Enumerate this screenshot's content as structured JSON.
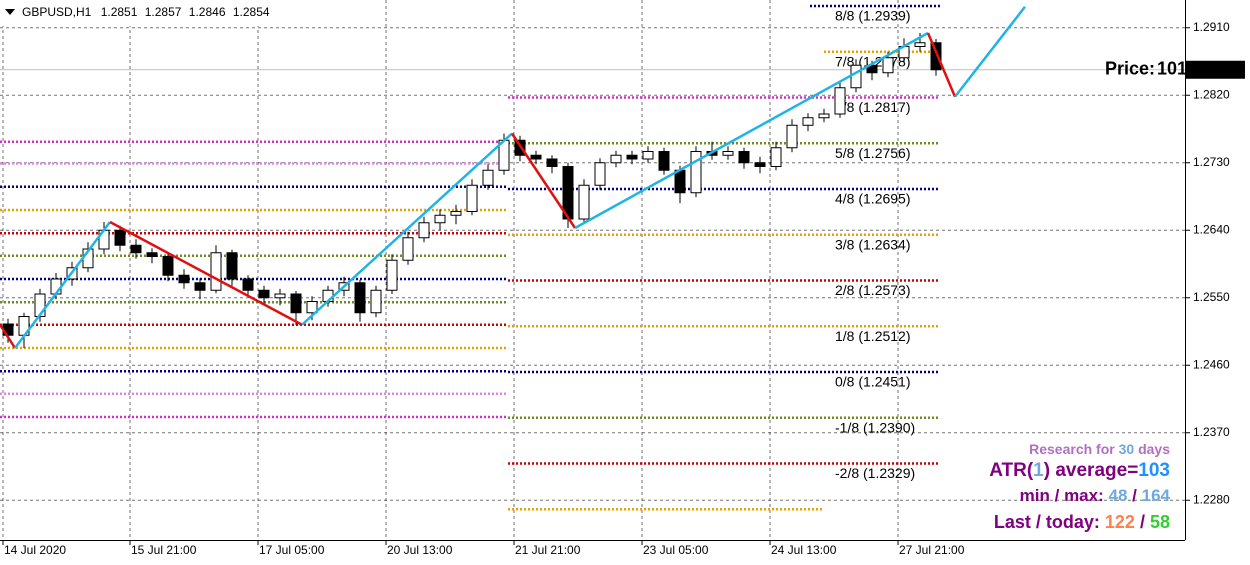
{
  "chart_data": {
    "type": "candlestick",
    "symbol": "GBPUSD,H1",
    "ohlc": [
      1.2851,
      1.2857,
      1.2846,
      1.2854
    ],
    "price_label": "Price:",
    "price_value": 101,
    "xlim": [
      0,
      296.25
    ],
    "ylim": [
      1.2227,
      1.2947
    ],
    "xticks": [
      {
        "value": 0.75,
        "label": "14 Jul 2020"
      },
      {
        "value": 32.5,
        "label": "15 Jul 21:00"
      },
      {
        "value": 64.5,
        "label": "17 Jul 05:00"
      },
      {
        "value": 96.5,
        "label": "20 Jul 13:00"
      },
      {
        "value": 128.5,
        "label": "21 Jul 21:00"
      },
      {
        "value": 160.5,
        "label": "23 Jul 05:00"
      },
      {
        "value": 192.5,
        "label": "24 Jul 13:00"
      },
      {
        "value": 224.5,
        "label": "27 Jul 21:00"
      }
    ],
    "yticks": [
      {
        "value": 1.291,
        "label": "1.2910"
      },
      {
        "value": 1.282,
        "label": "1.2820"
      },
      {
        "value": 1.273,
        "label": "1.2730"
      },
      {
        "value": 1.264,
        "label": "1.2640"
      },
      {
        "value": 1.255,
        "label": "1.2550"
      },
      {
        "value": 1.246,
        "label": "1.2460"
      },
      {
        "value": 1.237,
        "label": "1.2370"
      },
      {
        "value": 1.228,
        "label": "1.2280"
      }
    ],
    "grid": true,
    "x": [
      2,
      6,
      10,
      14,
      18,
      22,
      26,
      30,
      34,
      38,
      42,
      46,
      50,
      54,
      58,
      62,
      66,
      70,
      74,
      78,
      82,
      86,
      90,
      94,
      98,
      102,
      106,
      110,
      114,
      118,
      122,
      126,
      130,
      134,
      138,
      142,
      146,
      150,
      154,
      158,
      162,
      166,
      170,
      174,
      178,
      182,
      186,
      190,
      194,
      198,
      202,
      206,
      210,
      214,
      218,
      222,
      226,
      230,
      234
    ],
    "candles": [
      [
        1.2515,
        1.2522,
        1.249,
        1.25
      ],
      [
        1.25,
        1.253,
        1.2483,
        1.2525
      ],
      [
        1.2525,
        1.2562,
        1.2518,
        1.2555
      ],
      [
        1.2555,
        1.2583,
        1.2548,
        1.2575
      ],
      [
        1.2575,
        1.2598,
        1.2566,
        1.259
      ],
      [
        1.259,
        1.2624,
        1.2584,
        1.2615
      ],
      [
        1.2615,
        1.2651,
        1.2608,
        1.264
      ],
      [
        1.264,
        1.2646,
        1.2612,
        1.262
      ],
      [
        1.262,
        1.2628,
        1.2602,
        1.261
      ],
      [
        1.261,
        1.2616,
        1.2596,
        1.2605
      ],
      [
        1.2605,
        1.2609,
        1.2572,
        1.258
      ],
      [
        1.258,
        1.2588,
        1.2562,
        1.257
      ],
      [
        1.257,
        1.2576,
        1.2548,
        1.256
      ],
      [
        1.256,
        1.262,
        1.2556,
        1.261
      ],
      [
        1.261,
        1.2614,
        1.2566,
        1.2575
      ],
      [
        1.2575,
        1.258,
        1.2552,
        1.256
      ],
      [
        1.256,
        1.2566,
        1.2542,
        1.255
      ],
      [
        1.255,
        1.2562,
        1.254,
        1.2555
      ],
      [
        1.2555,
        1.2559,
        1.2514,
        1.253
      ],
      [
        1.253,
        1.2552,
        1.252,
        1.2545
      ],
      [
        1.2545,
        1.2566,
        1.2538,
        1.256
      ],
      [
        1.256,
        1.2578,
        1.2552,
        1.257
      ],
      [
        1.257,
        1.2574,
        1.2518,
        1.253
      ],
      [
        1.253,
        1.2566,
        1.2524,
        1.256
      ],
      [
        1.256,
        1.2608,
        1.2555,
        1.26
      ],
      [
        1.26,
        1.2638,
        1.2594,
        1.263
      ],
      [
        1.263,
        1.2658,
        1.2624,
        1.265
      ],
      [
        1.265,
        1.2668,
        1.264,
        1.266
      ],
      [
        1.266,
        1.2674,
        1.2648,
        1.2665
      ],
      [
        1.2665,
        1.2708,
        1.266,
        1.27
      ],
      [
        1.27,
        1.2728,
        1.2694,
        1.272
      ],
      [
        1.272,
        1.2769,
        1.2714,
        1.276
      ],
      [
        1.276,
        1.2766,
        1.2732,
        1.274
      ],
      [
        1.274,
        1.2746,
        1.2728,
        1.2735
      ],
      [
        1.2735,
        1.274,
        1.2716,
        1.2725
      ],
      [
        1.2725,
        1.273,
        1.2643,
        1.2655
      ],
      [
        1.2655,
        1.2708,
        1.265,
        1.27
      ],
      [
        1.27,
        1.2736,
        1.2694,
        1.273
      ],
      [
        1.273,
        1.2746,
        1.2724,
        1.274
      ],
      [
        1.274,
        1.2746,
        1.2728,
        1.2735
      ],
      [
        1.2735,
        1.2752,
        1.273,
        1.2745
      ],
      [
        1.2745,
        1.275,
        1.2714,
        1.272
      ],
      [
        1.272,
        1.2726,
        1.2676,
        1.269
      ],
      [
        1.269,
        1.2752,
        1.2684,
        1.2745
      ],
      [
        1.2745,
        1.2758,
        1.2734,
        1.274
      ],
      [
        1.274,
        1.2752,
        1.2734,
        1.2745
      ],
      [
        1.2745,
        1.275,
        1.2722,
        1.273
      ],
      [
        1.273,
        1.2738,
        1.2716,
        1.2725
      ],
      [
        1.2725,
        1.2758,
        1.272,
        1.275
      ],
      [
        1.275,
        1.2788,
        1.2744,
        1.278
      ],
      [
        1.278,
        1.2796,
        1.2772,
        1.279
      ],
      [
        1.279,
        1.2802,
        1.2784,
        1.2795
      ],
      [
        1.2795,
        1.2838,
        1.279,
        1.283
      ],
      [
        1.283,
        1.2868,
        1.2824,
        1.286
      ],
      [
        1.286,
        1.2866,
        1.284,
        1.285
      ],
      [
        1.285,
        1.2878,
        1.2844,
        1.287
      ],
      [
        1.287,
        1.2896,
        1.2864,
        1.2885
      ],
      [
        1.2885,
        1.2903,
        1.2878,
        1.289
      ],
      [
        1.289,
        1.2895,
        1.2846,
        1.2854
      ]
    ],
    "zigzag": {
      "x": [
        0,
        3.75,
        27.5,
        75.5,
        128,
        143.75,
        232,
        238.75,
        256.25
      ],
      "values": [
        1.2514,
        1.2483,
        1.2651,
        1.2514,
        1.2769,
        1.2643,
        1.2903,
        1.2818,
        1.2938
      ],
      "up_color": "#1fb4e8",
      "down_color": "#e01010"
    },
    "levels_prev": {
      "from": 0,
      "to": 127,
      "levels": [
        {
          "value": 1.2758,
          "color": "#cc33cc"
        },
        {
          "value": 1.2729,
          "color": "#dd88dd"
        },
        {
          "value": 1.2698,
          "color": "#00008b"
        },
        {
          "value": 1.2667,
          "color": "#e8a200"
        },
        {
          "value": 1.2636,
          "color": "#cc0000"
        },
        {
          "value": 1.2606,
          "color": "#6b8e23"
        },
        {
          "value": 1.2575,
          "color": "#00008b"
        },
        {
          "value": 1.2544,
          "color": "#6b8e23"
        },
        {
          "value": 1.2514,
          "color": "#cc0000"
        },
        {
          "value": 1.2483,
          "color": "#e8a200"
        },
        {
          "value": 1.2452,
          "color": "#00008b"
        },
        {
          "value": 1.2422,
          "color": "#dd88dd"
        },
        {
          "value": 1.2391,
          "color": "#cc33cc"
        }
      ]
    },
    "levels": [
      {
        "label": "8/8 (1.2939)",
        "value": 1.2939,
        "color": "#00008b",
        "label_color": "#2020c0",
        "from": 202.5,
        "to": 235
      },
      {
        "label": "7/8 (1.2878)",
        "value": 1.2878,
        "color": "#e8a200",
        "label_color": "#e8a200",
        "from": 206,
        "to": 235
      },
      {
        "label": "6/8 (1.2817)",
        "value": 1.2817,
        "color": "#cc33cc",
        "label_color": "#cc0000",
        "from": 127,
        "to": 235
      },
      {
        "label": "5/8 (1.2756)",
        "value": 1.2756,
        "color": "#6b8e23",
        "label_color": "#6b8e23",
        "from": 127,
        "to": 235
      },
      {
        "label": "4/8 (1.2695)",
        "value": 1.2695,
        "color": "#00008b",
        "label_color": "#1515c8",
        "from": 127,
        "to": 235
      },
      {
        "label": "3/8 (1.2634)",
        "value": 1.2634,
        "color": "#e8a200",
        "label_color": "#6b8e23",
        "from": 127,
        "to": 235
      },
      {
        "label": "2/8 (1.2573)",
        "value": 1.2573,
        "color": "#cc0000",
        "label_color": "#cc0000",
        "from": 127,
        "to": 235
      },
      {
        "label": "1/8 (1.2512)",
        "value": 1.2512,
        "color": "#e8a200",
        "label_color": "#e8a200",
        "from": 127,
        "to": 235
      },
      {
        "label": "0/8 (1.2451)",
        "value": 1.2451,
        "color": "#00008b",
        "label_color": "#1515c8",
        "from": 127,
        "to": 235
      },
      {
        "label": "-1/8 (1.2390)",
        "value": 1.239,
        "color": "#6b8e23",
        "label_color": "#dd88dd",
        "from": 127,
        "to": 235
      },
      {
        "label": "-2/8 (1.2329)",
        "value": 1.2329,
        "color": "#cc0000",
        "label_color": "#cc33cc",
        "from": 127,
        "to": 235
      },
      {
        "value": 1.2268,
        "color": "#e8a200",
        "from": 127,
        "to": 206
      }
    ],
    "info": {
      "research_prefix": "Research for",
      "days": 30,
      "research_suffix": "days",
      "atr_prefix": "ATR(",
      "atr_period": 1,
      "atr_mid": ") average=",
      "atr": 103,
      "minmax_label": "min / max:",
      "min": 48,
      "sep": "/",
      "max": 164,
      "last_label": "Last / today:",
      "last": 122,
      "today": 58
    }
  }
}
